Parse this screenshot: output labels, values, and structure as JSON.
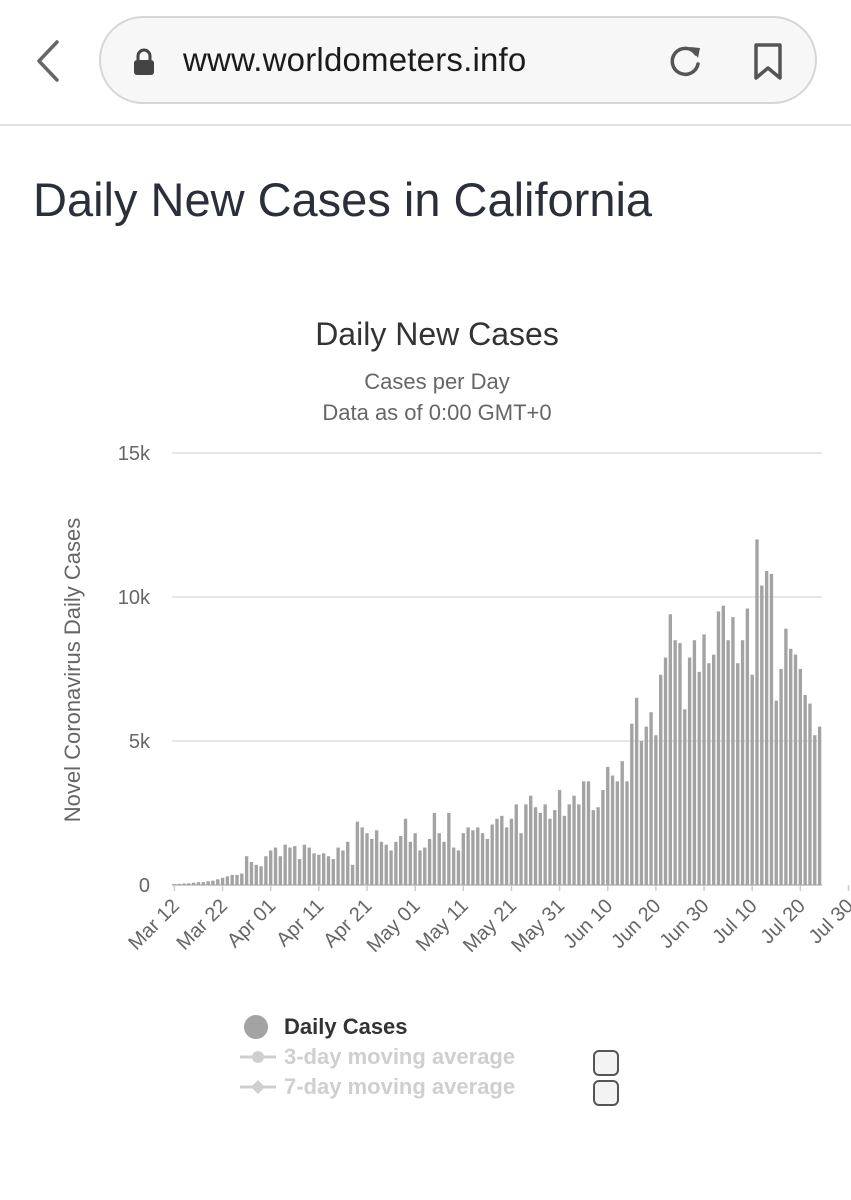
{
  "browser": {
    "url": "www.worldometers.info"
  },
  "page": {
    "title": "Daily New Cases in California"
  },
  "chart_data": {
    "type": "bar",
    "title": "Daily New Cases",
    "subtitle_line1": "Cases per Day",
    "subtitle_line2": "Data as of 0:00 GMT+0",
    "ylabel": "Novel Coronavirus Daily Cases",
    "xlabel": "",
    "ylim": [
      0,
      15000
    ],
    "y_ticks": [
      0,
      5000,
      10000,
      15000
    ],
    "y_tick_labels": [
      "0",
      "5k",
      "10k",
      "15k"
    ],
    "grid": true,
    "start_date": "Mar 12",
    "x_tick_labels": [
      "Mar 12",
      "Mar 22",
      "Apr 01",
      "Apr 11",
      "Apr 21",
      "May 01",
      "May 11",
      "May 21",
      "May 31",
      "Jun 10",
      "Jun 20",
      "Jun 30",
      "Jul 10",
      "Jul 20",
      "Jul 30"
    ],
    "bar_color": "#a3a3a3",
    "series": [
      {
        "name": "Daily Cases",
        "values": [
          30,
          40,
          50,
          60,
          80,
          100,
          100,
          130,
          150,
          200,
          250,
          300,
          350,
          350,
          400,
          1000,
          800,
          700,
          650,
          1000,
          1200,
          1300,
          1000,
          1400,
          1300,
          1350,
          900,
          1400,
          1300,
          1100,
          1050,
          1100,
          1000,
          900,
          1300,
          1200,
          1500,
          700,
          2200,
          2000,
          1800,
          1600,
          1900,
          1500,
          1400,
          1200,
          1500,
          1700,
          2300,
          1500,
          1800,
          1200,
          1300,
          1600,
          2500,
          1800,
          1500,
          2500,
          1300,
          1200,
          1800,
          2000,
          1900,
          2000,
          1800,
          1600,
          2100,
          2300,
          2400,
          2000,
          2300,
          2800,
          1800,
          2800,
          3100,
          2700,
          2500,
          2800,
          2300,
          2600,
          3300,
          2400,
          2800,
          3100,
          2800,
          3600,
          3600,
          2600,
          2700,
          3300,
          4100,
          3800,
          3600,
          4300,
          3600,
          5600,
          6500,
          5000,
          5500,
          6000,
          5200,
          7300,
          7900,
          9400,
          8500,
          8400,
          6100,
          7900,
          8500,
          7400,
          8700,
          7700,
          8000,
          9500,
          9700,
          8500,
          9300,
          7700,
          8500,
          9600,
          7300,
          12000,
          10400,
          10900,
          10800,
          6400,
          7500,
          8900,
          8200,
          8000,
          7500,
          6600,
          6300,
          5200,
          5500
        ]
      }
    ],
    "legend": [
      {
        "label": "Daily Cases",
        "active": true,
        "color": "#a3a3a3"
      },
      {
        "label": "3-day moving average",
        "active": false,
        "color": "#cfcfcf"
      },
      {
        "label": "7-day moving average",
        "active": false,
        "color": "#cfcfcf"
      }
    ]
  }
}
